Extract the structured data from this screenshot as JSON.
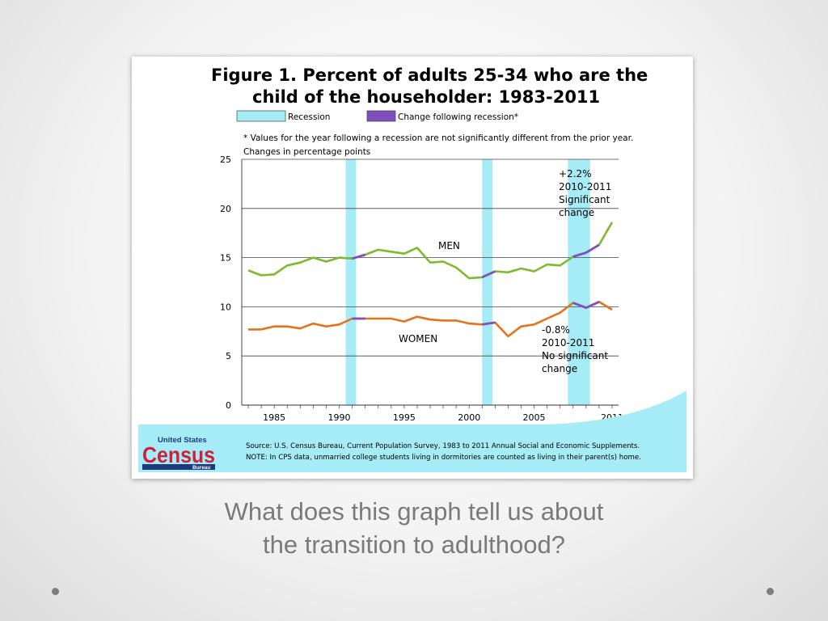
{
  "slide": {
    "caption_line1": "What does this graph tell us about",
    "caption_line2": "the transition to adulthood?"
  },
  "figure": {
    "title_line1": "Figure 1. Percent of adults 25-34 who are the",
    "title_line2": "child of the householder: 1983-2011",
    "legend": [
      {
        "label": "Recession",
        "color": "#a6ecf7"
      },
      {
        "label": "Change following recession*",
        "color": "#7e4fbd"
      }
    ],
    "footnote": "* Values for the year following a recession are not significantly different from the prior year.",
    "subtitle": "Changes in percentage points",
    "source": "Source: U.S. Census Bureau, Current Population Survey, 1983 to 2011 Annual Social and Economic Supplements.",
    "note": "NOTE: In CPS data, unmarried college students living in dormitories are counted  as living in their parent(s) home.",
    "logo": {
      "top": "United States",
      "main": "Census",
      "bottom": "Bureau"
    }
  },
  "chart_data": {
    "type": "line",
    "x": [
      1983,
      1984,
      1985,
      1986,
      1987,
      1988,
      1989,
      1990,
      1991,
      1992,
      1993,
      1994,
      1995,
      1996,
      1997,
      1998,
      1999,
      2000,
      2001,
      2002,
      2003,
      2004,
      2005,
      2006,
      2007,
      2008,
      2009,
      2010,
      2011
    ],
    "series": [
      {
        "name": "MEN",
        "color": "#7dbb2e",
        "values": [
          13.7,
          13.2,
          13.3,
          14.2,
          14.5,
          15.0,
          14.6,
          15.0,
          14.9,
          15.3,
          15.8,
          15.6,
          15.4,
          16.0,
          14.5,
          14.6,
          14.0,
          12.9,
          13.0,
          13.6,
          13.5,
          13.9,
          13.6,
          14.3,
          14.2,
          15.1,
          15.5,
          16.3,
          18.6
        ]
      },
      {
        "name": "WOMEN",
        "color": "#e4731b",
        "values": [
          7.7,
          7.7,
          8.0,
          8.0,
          7.8,
          8.3,
          8.0,
          8.2,
          8.8,
          8.8,
          8.8,
          8.8,
          8.5,
          9.0,
          8.7,
          8.6,
          8.6,
          8.3,
          8.2,
          8.4,
          7.0,
          8.0,
          8.2,
          8.8,
          9.4,
          10.4,
          9.9,
          10.5,
          9.7
        ]
      }
    ],
    "recessions": [
      [
        1990.5,
        1991.3
      ],
      [
        2001.0,
        2001.8
      ],
      [
        2007.6,
        2009.3
      ]
    ],
    "change_segments": [
      [
        1991,
        1992
      ],
      [
        2001,
        2002
      ],
      [
        2008,
        2010
      ]
    ],
    "change_color": "#7e4fbd",
    "recession_color": "#a6ecf7",
    "xlim": [
      1982.5,
      2011.5
    ],
    "ylim": [
      0,
      25
    ],
    "yticks": [
      0,
      5,
      10,
      15,
      20,
      25
    ],
    "xtick_labels": [
      "1985",
      "1990",
      "1995",
      "2000",
      "2005",
      "2011"
    ],
    "xtick_values": [
      1985,
      1990,
      1995,
      2000,
      2005,
      2011
    ],
    "grid": true,
    "annotations": {
      "men_label": "MEN",
      "women_label": "WOMEN",
      "men_change": [
        "+2.2%",
        "2010-2011",
        "Significant",
        "change"
      ],
      "women_change": [
        "-0.8%",
        "2010-2011",
        "No significant",
        "change"
      ]
    }
  }
}
